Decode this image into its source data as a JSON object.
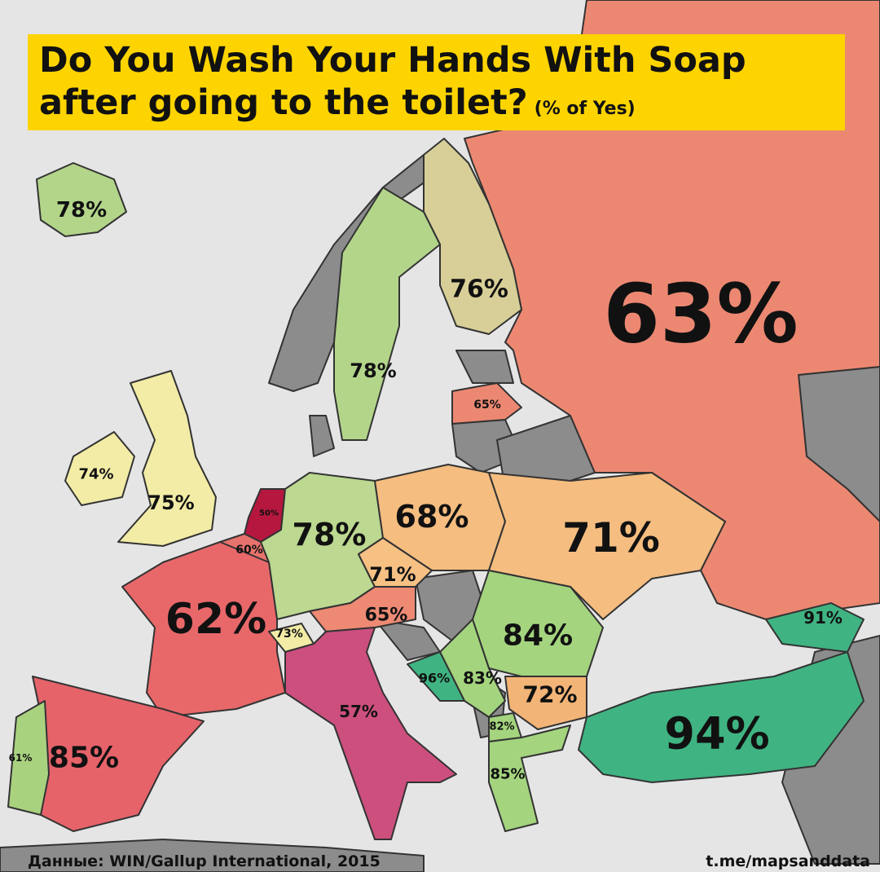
{
  "title": {
    "line1": "Do You Wash Your Hands With Soap",
    "line2": "after going to the toilet?",
    "unit_note": "(% of Yes)"
  },
  "source": "Данные: WIN/Gallup International, 2015",
  "credit": "t.me/mapsanddata",
  "colors": {
    "sea": "#e5e5e5",
    "no_data": "#8c8c8c",
    "title_bg": "#fdd400"
  },
  "countries": [
    {
      "name": "Iceland",
      "value": "78%",
      "color": "#b3d58a"
    },
    {
      "name": "Finland",
      "value": "76%",
      "color": "#d8cf98"
    },
    {
      "name": "Russia",
      "value": "63%",
      "color": "#ec8872"
    },
    {
      "name": "Sweden",
      "value": "78%",
      "color": "#b3d58a"
    },
    {
      "name": "Latvia",
      "value": "65%",
      "color": "#ec8872"
    },
    {
      "name": "Ireland",
      "value": "74%",
      "color": "#f2eca6"
    },
    {
      "name": "United Kingdom",
      "value": "75%",
      "color": "#f2eca6"
    },
    {
      "name": "Netherlands",
      "value": "50%",
      "color": "#b5173f"
    },
    {
      "name": "Belgium",
      "value": "60%",
      "color": "#e7736c"
    },
    {
      "name": "Germany",
      "value": "78%",
      "color": "#bcd891"
    },
    {
      "name": "Poland",
      "value": "68%",
      "color": "#f5bd80"
    },
    {
      "name": "Ukraine",
      "value": "71%",
      "color": "#f5bd80"
    },
    {
      "name": "Czech Republic",
      "value": "71%",
      "color": "#f7c184"
    },
    {
      "name": "France",
      "value": "62%",
      "color": "#e8686a"
    },
    {
      "name": "Austria",
      "value": "65%",
      "color": "#ee8a74"
    },
    {
      "name": "Switzerland",
      "value": "73%",
      "color": "#f2eca6"
    },
    {
      "name": "Romania",
      "value": "84%",
      "color": "#a4d47e"
    },
    {
      "name": "Georgia",
      "value": "91%",
      "color": "#3fb482"
    },
    {
      "name": "Bosnia and Herzegovina",
      "value": "96%",
      "color": "#3fb482"
    },
    {
      "name": "Serbia",
      "value": "83%",
      "color": "#a4d47e"
    },
    {
      "name": "Bulgaria",
      "value": "72%",
      "color": "#f3b477"
    },
    {
      "name": "Italy",
      "value": "57%",
      "color": "#cc4f7e"
    },
    {
      "name": "Macedonia",
      "value": "82%",
      "color": "#a4d47e"
    },
    {
      "name": "Turkey",
      "value": "94%",
      "color": "#3fb482"
    },
    {
      "name": "Portugal",
      "value": "85%",
      "color": "#a9d27f"
    },
    {
      "name": "Spain",
      "value": "61%",
      "color": "#e6636a"
    },
    {
      "name": "Greece",
      "value": "85%",
      "color": "#a4d47e"
    }
  ]
}
